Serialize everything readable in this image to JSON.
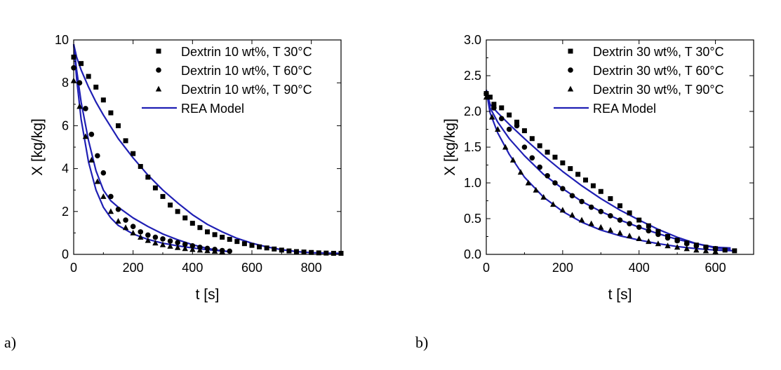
{
  "panels": [
    {
      "label": "a)",
      "chart_data": {
        "type": "scatter",
        "xlabel": "t [s]",
        "ylabel": "X [kg/kg]",
        "xlim": [
          0,
          900
        ],
        "ylim": [
          0,
          10
        ],
        "xticks": [
          0,
          200,
          400,
          600,
          800
        ],
        "yticks": [
          0,
          2,
          4,
          6,
          8,
          10
        ],
        "legend_position": "top-right",
        "model_label": "REA Model",
        "model_color": "#1f1fb4",
        "series": [
          {
            "name": "Dextrin 10 wt%, T 30°C",
            "marker": "square",
            "x": [
              0,
              25,
              50,
              75,
              100,
              125,
              150,
              175,
              200,
              225,
              250,
              275,
              300,
              325,
              350,
              375,
              400,
              425,
              450,
              475,
              500,
              525,
              550,
              575,
              600,
              625,
              650,
              675,
              700,
              725,
              750,
              775,
              800,
              825,
              850,
              875,
              900
            ],
            "y": [
              9.2,
              8.9,
              8.3,
              7.8,
              7.2,
              6.6,
              6.0,
              5.3,
              4.7,
              4.1,
              3.6,
              3.1,
              2.7,
              2.3,
              2.0,
              1.7,
              1.45,
              1.25,
              1.05,
              0.92,
              0.8,
              0.7,
              0.6,
              0.5,
              0.42,
              0.35,
              0.3,
              0.25,
              0.2,
              0.16,
              0.13,
              0.11,
              0.09,
              0.07,
              0.06,
              0.05,
              0.05
            ]
          },
          {
            "name": "Dextrin 10 wt%, T 60°C",
            "marker": "circle",
            "x": [
              0,
              20,
              40,
              60,
              80,
              100,
              125,
              150,
              175,
              200,
              225,
              250,
              275,
              300,
              325,
              350,
              375,
              400,
              425,
              450,
              475,
              500,
              525
            ],
            "y": [
              8.7,
              8.0,
              6.8,
              5.6,
              4.6,
              3.8,
              2.7,
              2.1,
              1.6,
              1.3,
              1.05,
              0.9,
              0.8,
              0.72,
              0.62,
              0.55,
              0.47,
              0.4,
              0.33,
              0.28,
              0.23,
              0.18,
              0.15
            ]
          },
          {
            "name": "Dextrin 10 wt%, T 90°C",
            "marker": "triangle",
            "x": [
              0,
              20,
              40,
              60,
              80,
              100,
              125,
              150,
              175,
              200,
              225,
              250,
              275,
              300,
              325,
              350,
              375,
              400,
              425,
              450,
              475,
              500
            ],
            "y": [
              8.1,
              6.9,
              5.5,
              4.4,
              3.4,
              2.7,
              2.0,
              1.55,
              1.25,
              1.0,
              0.8,
              0.65,
              0.53,
              0.45,
              0.38,
              0.32,
              0.27,
              0.23,
              0.2,
              0.17,
              0.15,
              0.13
            ]
          }
        ],
        "model_curves": [
          {
            "x": [
              0,
              10,
              25,
              50,
              75,
              100,
              150,
              200,
              250,
              300,
              350,
              400,
              450,
              500,
              550,
              600,
              650,
              700,
              750,
              800,
              850,
              900
            ],
            "y": [
              9.8,
              9.2,
              8.6,
              7.8,
              7.1,
              6.5,
              5.4,
              4.5,
              3.7,
              3.0,
              2.4,
              1.85,
              1.4,
              1.05,
              0.75,
              0.52,
              0.35,
              0.22,
              0.13,
              0.08,
              0.06,
              0.05
            ]
          },
          {
            "x": [
              0,
              10,
              25,
              50,
              75,
              100,
              125,
              150,
              200,
              250,
              300,
              350,
              400,
              450,
              500,
              530
            ],
            "y": [
              9.8,
              8.6,
              7.1,
              5.3,
              3.9,
              3.0,
              2.5,
              2.2,
              1.7,
              1.3,
              0.95,
              0.68,
              0.45,
              0.28,
              0.16,
              0.12
            ]
          },
          {
            "x": [
              0,
              10,
              25,
              50,
              75,
              100,
              125,
              150,
              200,
              250,
              300,
              350,
              400,
              450,
              500,
              520
            ],
            "y": [
              9.8,
              8.2,
              6.3,
              4.3,
              3.0,
              2.2,
              1.7,
              1.35,
              0.95,
              0.7,
              0.52,
              0.4,
              0.3,
              0.22,
              0.16,
              0.14
            ]
          }
        ]
      }
    },
    {
      "label": "b)",
      "chart_data": {
        "type": "scatter",
        "xlabel": "t [s]",
        "ylabel": "X [kg/kg]",
        "xlim": [
          0,
          700
        ],
        "ylim": [
          0,
          3.0
        ],
        "xticks": [
          0,
          200,
          400,
          600
        ],
        "yticks": [
          "0.0",
          "0.5",
          "1.0",
          "1.5",
          "2.0",
          "2.5",
          "3.0"
        ],
        "legend_position": "top-right",
        "model_label": "REA Model",
        "model_color": "#1f1fb4",
        "series": [
          {
            "name": "Dextrin 30 wt%, T 30°C",
            "marker": "square",
            "x": [
              0,
              10,
              20,
              40,
              60,
              80,
              100,
              120,
              140,
              160,
              180,
              200,
              220,
              240,
              260,
              280,
              300,
              325,
              350,
              375,
              400,
              425,
              450,
              475,
              500,
              525,
              550,
              575,
              600,
              625,
              650
            ],
            "y": [
              2.25,
              2.2,
              2.1,
              2.05,
              1.95,
              1.85,
              1.73,
              1.62,
              1.52,
              1.43,
              1.36,
              1.28,
              1.2,
              1.12,
              1.04,
              0.96,
              0.88,
              0.78,
              0.68,
              0.58,
              0.48,
              0.4,
              0.32,
              0.25,
              0.2,
              0.16,
              0.13,
              0.1,
              0.08,
              0.06,
              0.05
            ]
          },
          {
            "name": "Dextrin 30 wt%, T 60°C",
            "marker": "circle",
            "x": [
              0,
              20,
              40,
              60,
              80,
              100,
              120,
              140,
              160,
              180,
              200,
              225,
              250,
              275,
              300,
              325,
              350,
              375,
              400,
              425,
              450,
              475,
              500,
              525,
              550,
              575,
              600
            ],
            "y": [
              2.25,
              2.05,
              1.9,
              1.75,
              1.8,
              1.5,
              1.35,
              1.22,
              1.1,
              1.0,
              0.92,
              0.82,
              0.74,
              0.66,
              0.6,
              0.54,
              0.48,
              0.43,
              0.38,
              0.33,
              0.28,
              0.23,
              0.19,
              0.15,
              0.12,
              0.1,
              0.08
            ]
          },
          {
            "name": "Dextrin 30 wt%, T 90°C",
            "marker": "triangle",
            "x": [
              0,
              15,
              30,
              50,
              70,
              90,
              110,
              130,
              150,
              175,
              200,
              225,
              250,
              275,
              300,
              325,
              350,
              375,
              400,
              425,
              450,
              475,
              500,
              525,
              550,
              575,
              600
            ],
            "y": [
              2.2,
              1.92,
              1.75,
              1.5,
              1.32,
              1.15,
              1.0,
              0.9,
              0.8,
              0.7,
              0.62,
              0.55,
              0.48,
              0.43,
              0.38,
              0.34,
              0.3,
              0.26,
              0.22,
              0.18,
              0.15,
              0.12,
              0.1,
              0.08,
              0.06,
              0.05,
              0.04
            ]
          }
        ],
        "model_curves": [
          {
            "x": [
              0,
              10,
              30,
              60,
              100,
              150,
              200,
              250,
              300,
              350,
              400,
              450,
              500,
              550,
              600,
              640
            ],
            "y": [
              2.3,
              2.1,
              1.98,
              1.82,
              1.62,
              1.38,
              1.16,
              0.96,
              0.78,
              0.62,
              0.48,
              0.35,
              0.24,
              0.15,
              0.09,
              0.07
            ]
          },
          {
            "x": [
              0,
              10,
              30,
              60,
              100,
              150,
              200,
              250,
              300,
              350,
              400,
              450,
              500,
              550,
              600,
              640
            ],
            "y": [
              2.3,
              2.05,
              1.85,
              1.62,
              1.38,
              1.12,
              0.92,
              0.74,
              0.6,
              0.48,
              0.38,
              0.29,
              0.21,
              0.15,
              0.1,
              0.09
            ]
          },
          {
            "x": [
              0,
              10,
              30,
              60,
              100,
              150,
              200,
              250,
              300,
              350,
              400,
              450,
              500,
              550,
              600,
              650
            ],
            "y": [
              2.3,
              1.98,
              1.7,
              1.4,
              1.08,
              0.8,
              0.6,
              0.45,
              0.34,
              0.26,
              0.2,
              0.15,
              0.11,
              0.08,
              0.06,
              0.05
            ]
          }
        ]
      }
    }
  ]
}
